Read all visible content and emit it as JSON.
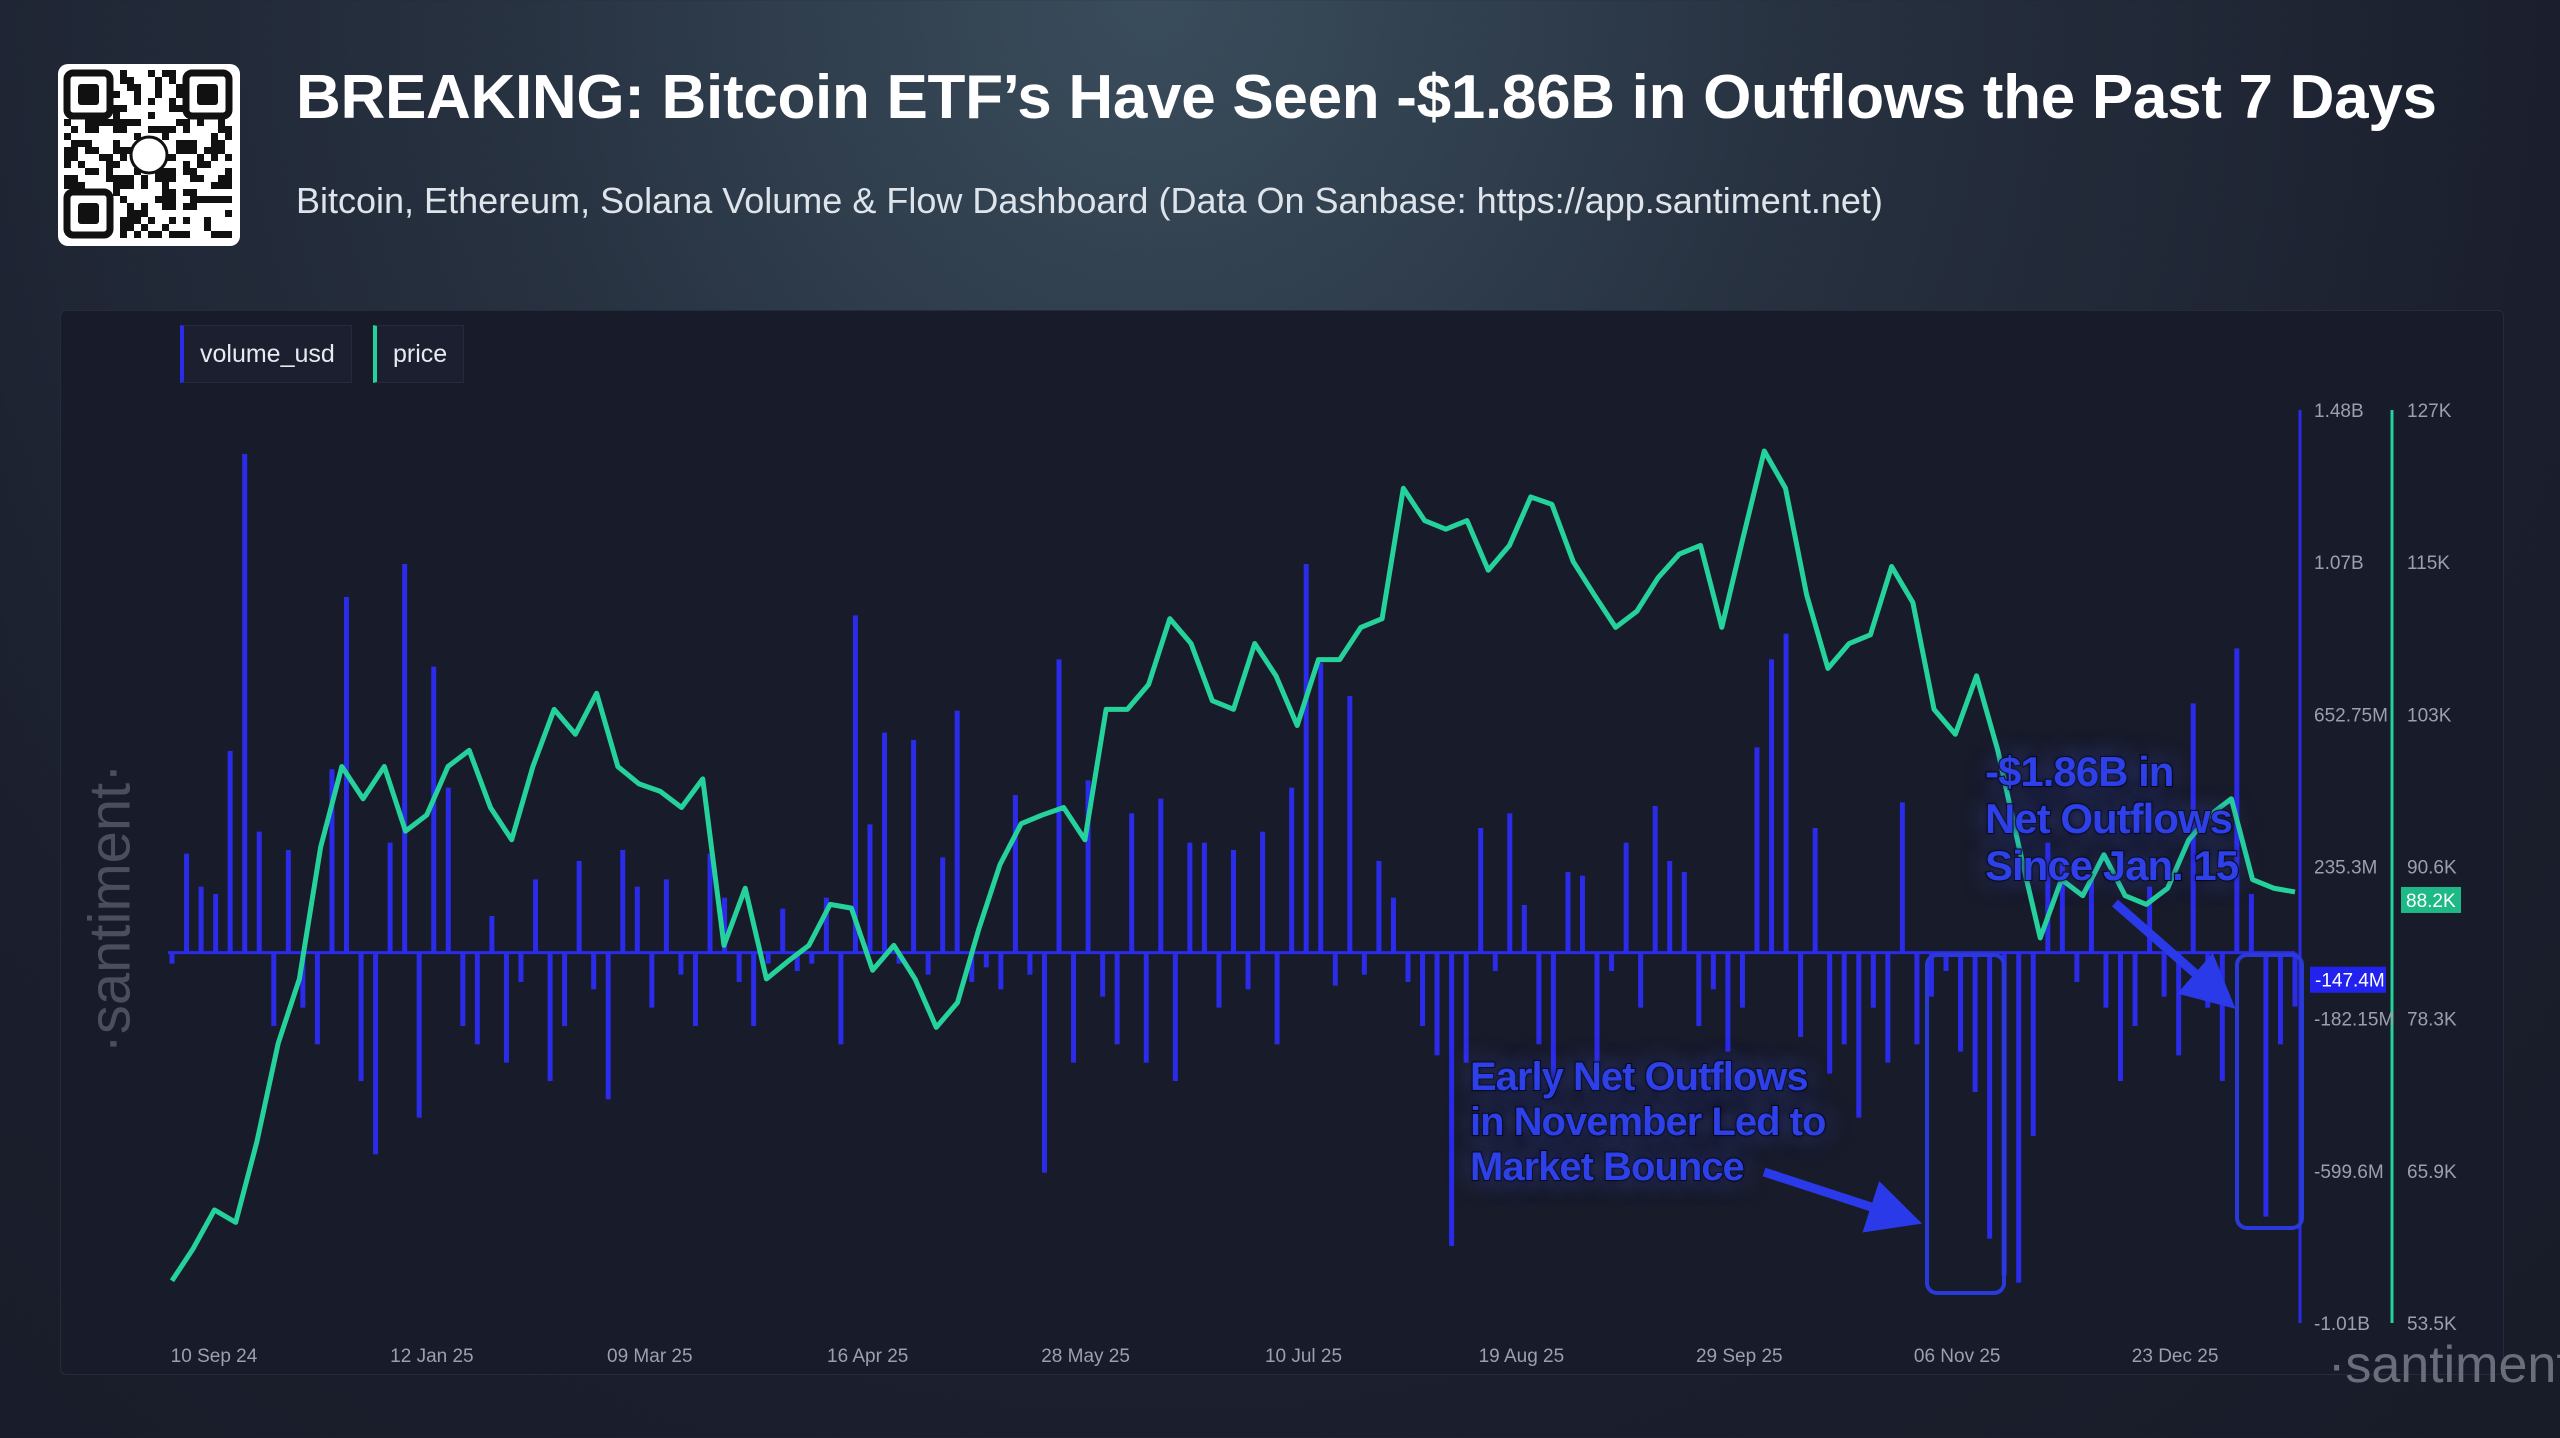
{
  "header": {
    "title": "BREAKING: Bitcoin ETF’s Have Seen -$1.86B in Outflows the Past 7 Days",
    "subtitle": "Bitcoin, Ethereum, Solana Volume & Flow Dashboard (Data On Sanbase: https://app.santiment.net)"
  },
  "watermark": "·santiment·",
  "legend": [
    "volume_usd",
    "price"
  ],
  "annotations": {
    "november": [
      "Early Net Outflows",
      "in November Led to",
      "Market Bounce"
    ],
    "recent": [
      "-$1.86B in",
      "Net Outflows",
      "Since Jan. 15"
    ]
  },
  "colors": {
    "volume": "#2b2bea",
    "price": "#25d29b"
  },
  "chart_data": {
    "type": "bar+line",
    "x_tick_labels": [
      "10 Sep 24",
      "12 Jan 25",
      "09 Mar 25",
      "16 Apr 25",
      "28 May 25",
      "10 Jul 25",
      "19 Aug 25",
      "29 Sep 25",
      "06 Nov 25",
      "23 Dec 25"
    ],
    "volume_axis": {
      "ticks": [
        "1.48B",
        "1.07B",
        "652.75M",
        "235.3M",
        "-182.15M",
        "-599.6M",
        "-1.01B"
      ],
      "range_millions": [
        -1010,
        1480
      ]
    },
    "price_axis": {
      "ticks": [
        "127K",
        "115K",
        "103K",
        "90.6K",
        "78.3K",
        "65.9K",
        "53.5K"
      ],
      "range_thousands": [
        53.5,
        127
      ]
    },
    "current_values": {
      "volume_usd": "-147.4M",
      "price": "88.2K"
    },
    "series": [
      {
        "name": "volume_usd",
        "type": "bar",
        "unit": "USD millions",
        "values": [
          -30,
          270,
          180,
          160,
          550,
          1360,
          330,
          -200,
          280,
          -150,
          -250,
          500,
          970,
          -350,
          -550,
          300,
          1060,
          -450,
          780,
          450,
          -200,
          -250,
          100,
          -300,
          -80,
          200,
          -350,
          -200,
          250,
          -100,
          -400,
          280,
          180,
          -150,
          200,
          -60,
          -200,
          270,
          150,
          -80,
          -200,
          -30,
          120,
          -50,
          -30,
          150,
          -250,
          920,
          350,
          600,
          -30,
          580,
          -60,
          260,
          660,
          -80,
          -40,
          -100,
          430,
          -60,
          -600,
          800,
          -300,
          470,
          -120,
          -250,
          380,
          -300,
          420,
          -350,
          300,
          300,
          -150,
          280,
          -100,
          330,
          -250,
          450,
          1060,
          790,
          -90,
          700,
          -60,
          250,
          150,
          -80,
          -200,
          -280,
          -800,
          -300,
          340,
          -50,
          380,
          130,
          -250,
          -350,
          220,
          210,
          -300,
          -50,
          300,
          -150,
          400,
          250,
          220,
          -200,
          -100,
          -270,
          -150,
          560,
          800,
          870,
          -230,
          340,
          -330,
          -250,
          -450,
          -150,
          -300,
          410,
          -250,
          -120,
          -50,
          -270,
          -380,
          -780,
          -880,
          -900,
          -500,
          300,
          250,
          -80,
          200,
          -150,
          -350,
          -200,
          180,
          -120,
          -280,
          680,
          -150,
          -350,
          830,
          160,
          -720,
          -250,
          -147
        ]
      },
      {
        "name": "price",
        "type": "line",
        "unit": "USD thousands",
        "values": [
          56.9,
          59.5,
          62.6,
          61.6,
          68.1,
          76.0,
          81.2,
          91.8,
          98.3,
          95.7,
          98.3,
          93.1,
          94.4,
          98.3,
          99.6,
          95.0,
          92.4,
          98.3,
          102.9,
          100.9,
          104.2,
          98.3,
          96.9,
          96.3,
          95.0,
          97.3,
          83.9,
          88.5,
          81.2,
          82.6,
          83.9,
          87.2,
          86.9,
          81.9,
          83.9,
          81.2,
          77.3,
          79.3,
          85.2,
          90.4,
          93.7,
          94.4,
          95.0,
          92.4,
          102.9,
          102.9,
          104.9,
          110.2,
          108.2,
          103.6,
          102.9,
          108.2,
          105.6,
          101.6,
          106.9,
          106.9,
          109.5,
          110.2,
          120.7,
          118.1,
          117.4,
          118.1,
          114.1,
          116.1,
          120.0,
          119.4,
          114.8,
          112.1,
          109.5,
          110.8,
          113.5,
          115.4,
          116.1,
          109.5,
          116.7,
          123.7,
          120.7,
          112.1,
          106.2,
          108.2,
          108.9,
          114.4,
          111.5,
          102.9,
          100.9,
          105.6,
          99.6,
          91.8,
          84.5,
          89.2,
          87.9,
          91.2,
          87.9,
          87.2,
          88.5,
          92.4,
          94.4,
          95.7,
          89.2,
          88.5,
          88.2
        ]
      }
    ],
    "grid": false,
    "legend_position": "top-left"
  }
}
